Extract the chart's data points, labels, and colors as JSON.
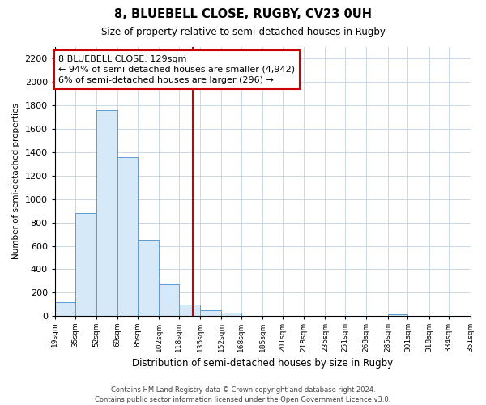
{
  "title": "8, BLUEBELL CLOSE, RUGBY, CV23 0UH",
  "subtitle": "Size of property relative to semi-detached houses in Rugby",
  "xlabel": "Distribution of semi-detached houses by size in Rugby",
  "ylabel": "Number of semi-detached properties",
  "bar_color": "#d6e9f8",
  "bar_edge_color": "#5b9bd5",
  "background_color": "#ffffff",
  "grid_color": "#c8d8e8",
  "property_value": 129,
  "vline_x": 129,
  "vline_color": "#cc0000",
  "annotation_text": "8 BLUEBELL CLOSE: 129sqm\n← 94% of semi-detached houses are smaller (4,942)\n6% of semi-detached houses are larger (296) →",
  "bin_edges": [
    19,
    35,
    52,
    69,
    85,
    102,
    118,
    135,
    152,
    168,
    185,
    201,
    218,
    235,
    251,
    268,
    285,
    301,
    318,
    334,
    351
  ],
  "counts": [
    120,
    880,
    1760,
    1360,
    650,
    270,
    100,
    50,
    30,
    0,
    0,
    0,
    0,
    0,
    0,
    0,
    15,
    0,
    0,
    0
  ],
  "tick_labels": [
    "19sqm",
    "35sqm",
    "52sqm",
    "69sqm",
    "85sqm",
    "102sqm",
    "118sqm",
    "135sqm",
    "152sqm",
    "168sqm",
    "185sqm",
    "201sqm",
    "218sqm",
    "235sqm",
    "251sqm",
    "268sqm",
    "285sqm",
    "301sqm",
    "318sqm",
    "334sqm",
    "351sqm"
  ],
  "ylim": [
    0,
    2300
  ],
  "yticks": [
    0,
    200,
    400,
    600,
    800,
    1000,
    1200,
    1400,
    1600,
    1800,
    2000,
    2200
  ],
  "footer": "Contains HM Land Registry data © Crown copyright and database right 2024.\nContains public sector information licensed under the Open Government Licence v3.0.",
  "figsize": [
    6.0,
    5.0
  ],
  "dpi": 100
}
